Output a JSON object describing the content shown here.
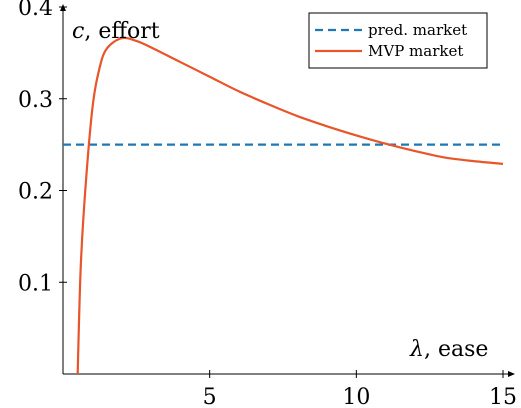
{
  "chart_data": {
    "type": "line",
    "xlabel": "λ, ease",
    "ylabel": "c, effort",
    "xlim": [
      0,
      15
    ],
    "ylim": [
      0,
      0.4
    ],
    "xticks": [
      5,
      10,
      15
    ],
    "yticks": [
      0.1,
      0.2,
      0.3,
      0.4
    ],
    "grid": false,
    "legend": "top-right",
    "series": [
      {
        "name": "pred. market",
        "style": "dashed",
        "color": "#1f77b4",
        "x": [
          0,
          15
        ],
        "y": [
          0.25,
          0.25
        ]
      },
      {
        "name": "MVP market",
        "style": "solid",
        "color": "#e8552b",
        "x": [
          0.5,
          0.6,
          0.75,
          1.0,
          1.25,
          1.5,
          2.0,
          2.5,
          3.0,
          4.0,
          5.0,
          6.0,
          7.0,
          8.0,
          9.0,
          10.0,
          11.0,
          12.0,
          13.0,
          14.0,
          15.0
        ],
        "y": [
          0.0,
          0.113,
          0.196,
          0.289,
          0.334,
          0.355,
          0.366,
          0.363,
          0.356,
          0.34,
          0.324,
          0.308,
          0.294,
          0.281,
          0.27,
          0.26,
          0.251,
          0.243,
          0.236,
          0.232,
          0.229
        ]
      }
    ]
  }
}
